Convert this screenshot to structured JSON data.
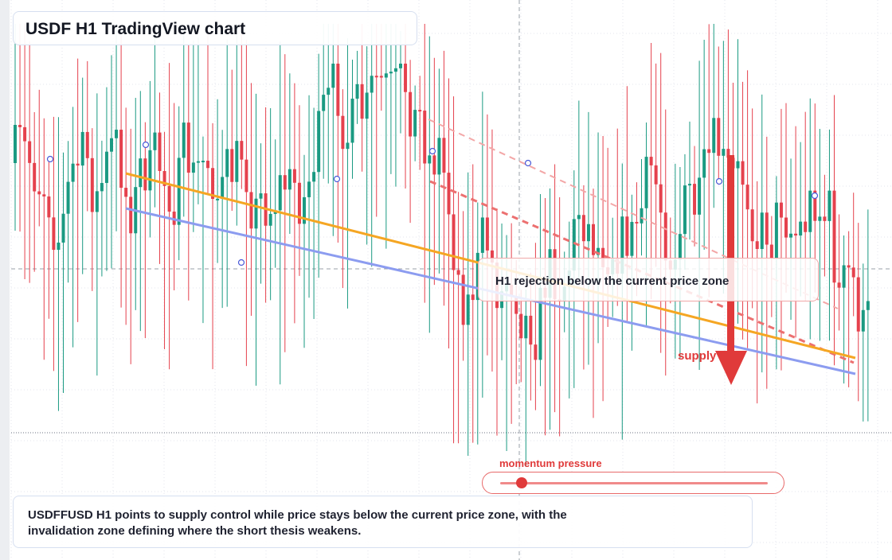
{
  "title": "USDF H1 TradingView chart",
  "callout": {
    "text": "H1 rejection below the current price zone"
  },
  "supply_label": "supply",
  "momentum": {
    "label": "momentum pressure",
    "level": 0.08
  },
  "summary": "USDFFUSD H1 points to supply control while price stays below the current price zone, with the invalidation zone defining where the short thesis weakens.",
  "colors": {
    "bull": "#1a9a82",
    "bear": "#e5414d",
    "trend_orange": "#f5a623",
    "trend_blue": "#8c9cf0",
    "accent": "#e03a3a"
  },
  "chart_data": {
    "type": "candlestick",
    "symbol": "USDFFUSD",
    "timeframe": "H1",
    "candle_count": 178,
    "direction_bias": "short",
    "annotations": [
      "H1 rejection below the current price zone",
      "supply",
      "momentum pressure"
    ]
  }
}
